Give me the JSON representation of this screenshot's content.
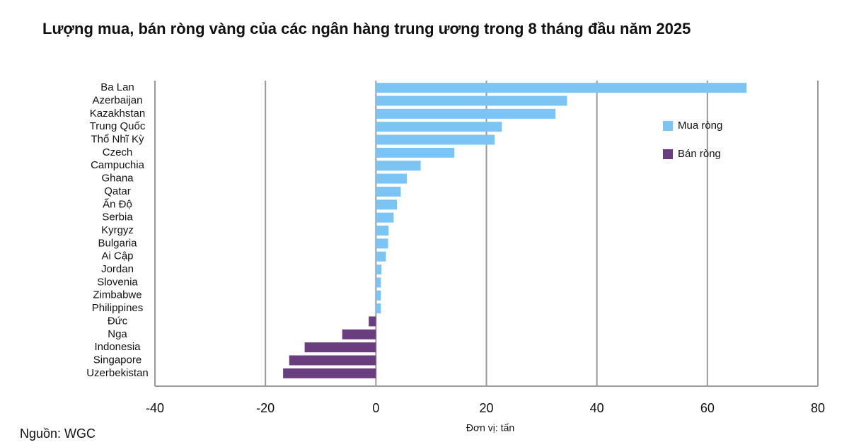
{
  "chart_data": {
    "type": "barh",
    "title": "Lượng mua, bán ròng vàng của các ngân hàng trung ương trong 8 tháng đầu năm 2025",
    "categories": [
      "Ba Lan",
      "Azerbaijan",
      "Kazakhstan",
      "Trung Quốc",
      "Thổ Nhĩ Kỳ",
      "Czech",
      "Campuchia",
      "Ghana",
      "Qatar",
      "Ấn Độ",
      "Serbia",
      "Kyrgyz",
      "Bulgaria",
      "Ai Cập",
      "Jordan",
      "Slovenia",
      "Zimbabwe",
      "Philippines",
      "Đức",
      "Nga",
      "Indonesia",
      "Singapore",
      "Uzerbekistan"
    ],
    "series": [
      {
        "name": "Mua ròng",
        "color": "#7cc4f4",
        "values": [
          67.1,
          34.6,
          32.5,
          22.8,
          21.5,
          14.2,
          8.1,
          5.6,
          4.5,
          3.8,
          3.2,
          2.3,
          2.2,
          1.8,
          1.0,
          0.9,
          0.9,
          0.9,
          null,
          null,
          null,
          null,
          null
        ]
      },
      {
        "name": "Bán ròng",
        "color": "#6a3d7e",
        "values": [
          null,
          null,
          null,
          null,
          null,
          null,
          null,
          null,
          null,
          null,
          null,
          null,
          null,
          null,
          null,
          null,
          null,
          null,
          -1.3,
          -6.1,
          -12.9,
          -15.7,
          -16.8
        ]
      }
    ],
    "xlim": [
      -40,
      80
    ],
    "xticks": [
      -40,
      -20,
      0,
      20,
      40,
      60,
      80
    ],
    "grid": true,
    "x_label": "Đơn vị: tấn",
    "source": "Nguồn: WGC"
  }
}
